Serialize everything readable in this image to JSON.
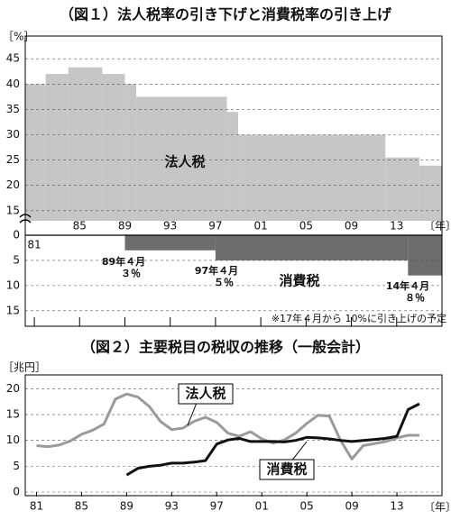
{
  "chart_data": [
    {
      "type": "step-area",
      "title": "（図１）法人税率の引き下げと消費税率の引き上げ",
      "y_label": "［%］",
      "x_label": "〔年〕",
      "note": "※17年４月から 10%に引き上げの予定",
      "xlim": [
        1980.2,
        2017
      ],
      "xticks": [
        {
          "value": 1981,
          "label": "81"
        },
        {
          "value": 1985,
          "label": "85"
        },
        {
          "value": 1989,
          "label": "89"
        },
        {
          "value": 1993,
          "label": "93"
        },
        {
          "value": 1997,
          "label": "97"
        },
        {
          "value": 2001,
          "label": "01"
        },
        {
          "value": 2005,
          "label": "05"
        },
        {
          "value": 2009,
          "label": "09"
        },
        {
          "value": 2013,
          "label": "13"
        }
      ],
      "ylim": [
        13,
        47
      ],
      "yticks": [
        15,
        20,
        25,
        30,
        35,
        40,
        45
      ],
      "y2lim": [
        0,
        17
      ],
      "y2ticks": [
        0,
        5,
        10,
        15
      ],
      "grid": true,
      "axis_break": true,
      "series": [
        {
          "name": "法人税",
          "color": "#c6c6c6",
          "x": [
            1981,
            1982,
            1984,
            1987,
            1989,
            1990,
            1998,
            1999,
            2012,
            2015
          ],
          "values": [
            40,
            42,
            43.3,
            42,
            40,
            37.5,
            34.5,
            30,
            25.5,
            23.9
          ]
        },
        {
          "name": "消費税",
          "color": "#6d6d6d",
          "axis": "y2",
          "x": [
            1989,
            1997,
            2014
          ],
          "values": [
            3,
            5,
            8
          ]
        }
      ],
      "annotations": [
        [
          "89年４月",
          "３％"
        ],
        [
          "97年４月",
          "５％"
        ],
        [
          "14年４月",
          "８％"
        ]
      ]
    },
    {
      "type": "line",
      "title": "（図２）主要税目の税収の推移（一般会計）",
      "y_label": "［兆円］",
      "x_label": "〔年〕",
      "xlim": [
        1980,
        2017
      ],
      "xticks": [
        {
          "value": 1981,
          "label": "81"
        },
        {
          "value": 1985,
          "label": "85"
        },
        {
          "value": 1989,
          "label": "89"
        },
        {
          "value": 1993,
          "label": "93"
        },
        {
          "value": 1997,
          "label": "97"
        },
        {
          "value": 2001,
          "label": "01"
        },
        {
          "value": 2005,
          "label": "05"
        },
        {
          "value": 2009,
          "label": "09"
        },
        {
          "value": 2013,
          "label": "13"
        }
      ],
      "ylim": [
        0,
        22
      ],
      "yticks": [
        0,
        5,
        10,
        15,
        20
      ],
      "grid": true,
      "x": [
        1981,
        1982,
        1983,
        1984,
        1985,
        1986,
        1987,
        1988,
        1989,
        1990,
        1991,
        1992,
        1993,
        1994,
        1995,
        1996,
        1997,
        1998,
        1999,
        2000,
        2001,
        2002,
        2003,
        2004,
        2005,
        2006,
        2007,
        2008,
        2009,
        2010,
        2011,
        2012,
        2013,
        2014,
        2015
      ],
      "series": [
        {
          "name": "法人税",
          "color": "#9a9a9a",
          "values": [
            9.0,
            8.8,
            9.1,
            9.9,
            11.2,
            12.0,
            13.2,
            18.0,
            19.0,
            18.4,
            16.6,
            13.7,
            12.1,
            12.4,
            13.7,
            14.5,
            13.5,
            11.4,
            10.8,
            11.7,
            10.3,
            9.5,
            10.1,
            11.4,
            13.3,
            14.9,
            14.7,
            10.0,
            6.4,
            9.0,
            9.4,
            9.8,
            10.5,
            11.0,
            11.0
          ]
        },
        {
          "name": "消費税",
          "color": "#111111",
          "values": [
            null,
            null,
            null,
            null,
            null,
            null,
            null,
            null,
            3.3,
            4.6,
            5.0,
            5.2,
            5.6,
            5.6,
            5.8,
            6.1,
            9.3,
            10.1,
            10.4,
            9.8,
            9.8,
            9.8,
            9.7,
            10.0,
            10.6,
            10.5,
            10.3,
            10.0,
            9.8,
            10.0,
            10.2,
            10.4,
            10.8,
            16.0,
            17.1
          ]
        }
      ]
    }
  ]
}
